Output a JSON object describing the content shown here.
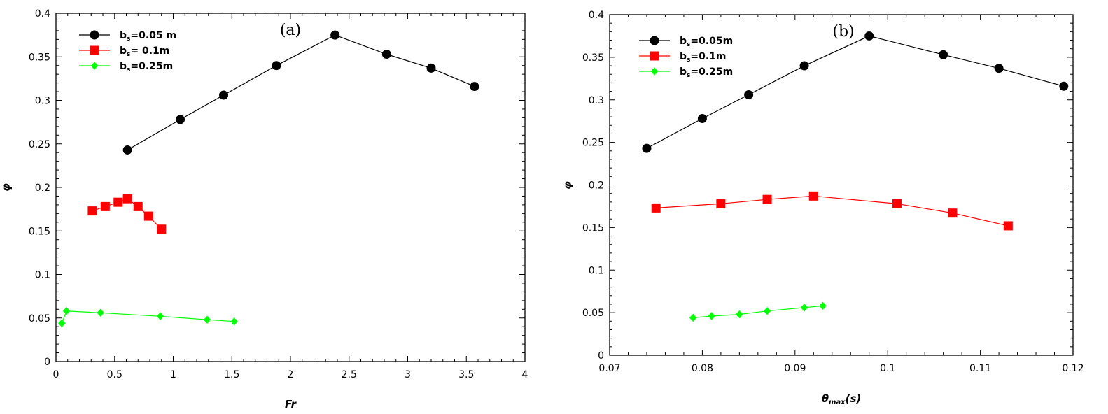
{
  "chart_data": [
    {
      "type": "line",
      "panel_label": "(a)",
      "xlabel": "Fr",
      "ylabel": "φ",
      "xlim": [
        0,
        4
      ],
      "ylim": [
        0,
        0.4
      ],
      "xticks": [
        0,
        0.5,
        1,
        1.5,
        2,
        2.5,
        3,
        3.5,
        4
      ],
      "xtick_labels": [
        "0",
        "0.5",
        "1",
        "1.5",
        "2",
        "2.5",
        "3",
        "3.5",
        "4"
      ],
      "yticks": [
        0,
        0.05,
        0.1,
        0.15,
        0.2,
        0.25,
        0.3,
        0.35,
        0.4
      ],
      "ytick_labels": [
        "0",
        "0.05",
        "0.1",
        "0.15",
        "0.2",
        "0.25",
        "0.3",
        "0.35",
        "0.4"
      ],
      "legend_position": "top-left",
      "series": [
        {
          "name": "bs=0.05 m",
          "label_main": "b",
          "label_sub": "s",
          "label_rest": "=0.05 m",
          "color": "#000000",
          "marker": "circle",
          "x": [
            0.61,
            1.06,
            1.43,
            1.88,
            2.38,
            2.82,
            3.2,
            3.57
          ],
          "y": [
            0.243,
            0.278,
            0.306,
            0.34,
            0.375,
            0.353,
            0.337,
            0.316
          ]
        },
        {
          "name": "bs= 0.1m",
          "label_main": "b",
          "label_sub": "s",
          "label_rest": "= 0.1m",
          "color": "#ff0000",
          "marker": "square",
          "x": [
            0.31,
            0.42,
            0.53,
            0.61,
            0.7,
            0.79,
            0.9
          ],
          "y": [
            0.173,
            0.178,
            0.183,
            0.187,
            0.178,
            0.167,
            0.152
          ]
        },
        {
          "name": "bs=0.25m",
          "label_main": "b",
          "label_sub": "s",
          "label_rest": "=0.25m",
          "color": "#00ff00",
          "marker": "diamond",
          "x": [
            0.05,
            0.09,
            0.38,
            0.89,
            1.29,
            1.52
          ],
          "y": [
            0.044,
            0.058,
            0.056,
            0.052,
            0.048,
            0.046
          ]
        }
      ]
    },
    {
      "type": "line",
      "panel_label": "(b)",
      "xlabel": "θmax(s)",
      "xlabel_main": "θ",
      "xlabel_sub": "max",
      "xlabel_rest": "(s)",
      "ylabel": "φ",
      "xlim": [
        0.07,
        0.12
      ],
      "ylim": [
        0,
        0.4
      ],
      "xticks": [
        0.07,
        0.08,
        0.09,
        0.1,
        0.11,
        0.12
      ],
      "xtick_labels": [
        "0.07",
        "0.08",
        "0.09",
        "0.1",
        "0.11",
        "0.12"
      ],
      "yticks": [
        0,
        0.05,
        0.1,
        0.15,
        0.2,
        0.25,
        0.3,
        0.35,
        0.4
      ],
      "ytick_labels": [
        "0",
        "0.05",
        "0.1",
        "0.15",
        "0.2",
        "0.25",
        "0.3",
        "0.35",
        "0.4"
      ],
      "legend_position": "top-left",
      "series": [
        {
          "name": "bs=0.05m",
          "label_main": "b",
          "label_sub": "s",
          "label_rest": "=0.05m",
          "color": "#000000",
          "marker": "circle",
          "x": [
            0.074,
            0.08,
            0.085,
            0.091,
            0.098,
            0.106,
            0.112,
            0.119
          ],
          "y": [
            0.243,
            0.278,
            0.306,
            0.34,
            0.375,
            0.353,
            0.337,
            0.316
          ]
        },
        {
          "name": "bs=0.1m",
          "label_main": "b",
          "label_sub": "s",
          "label_rest": "=0.1m",
          "color": "#ff0000",
          "marker": "square",
          "x": [
            0.075,
            0.082,
            0.087,
            0.092,
            0.101,
            0.107,
            0.113
          ],
          "y": [
            0.173,
            0.178,
            0.183,
            0.187,
            0.178,
            0.167,
            0.152
          ]
        },
        {
          "name": "bs=0.25m",
          "label_main": "b",
          "label_sub": "s",
          "label_rest": "=0.25m",
          "color": "#00ff00",
          "marker": "diamond",
          "x": [
            0.079,
            0.081,
            0.084,
            0.087,
            0.091,
            0.093
          ],
          "y": [
            0.044,
            0.046,
            0.048,
            0.052,
            0.056,
            0.058
          ]
        }
      ]
    }
  ]
}
